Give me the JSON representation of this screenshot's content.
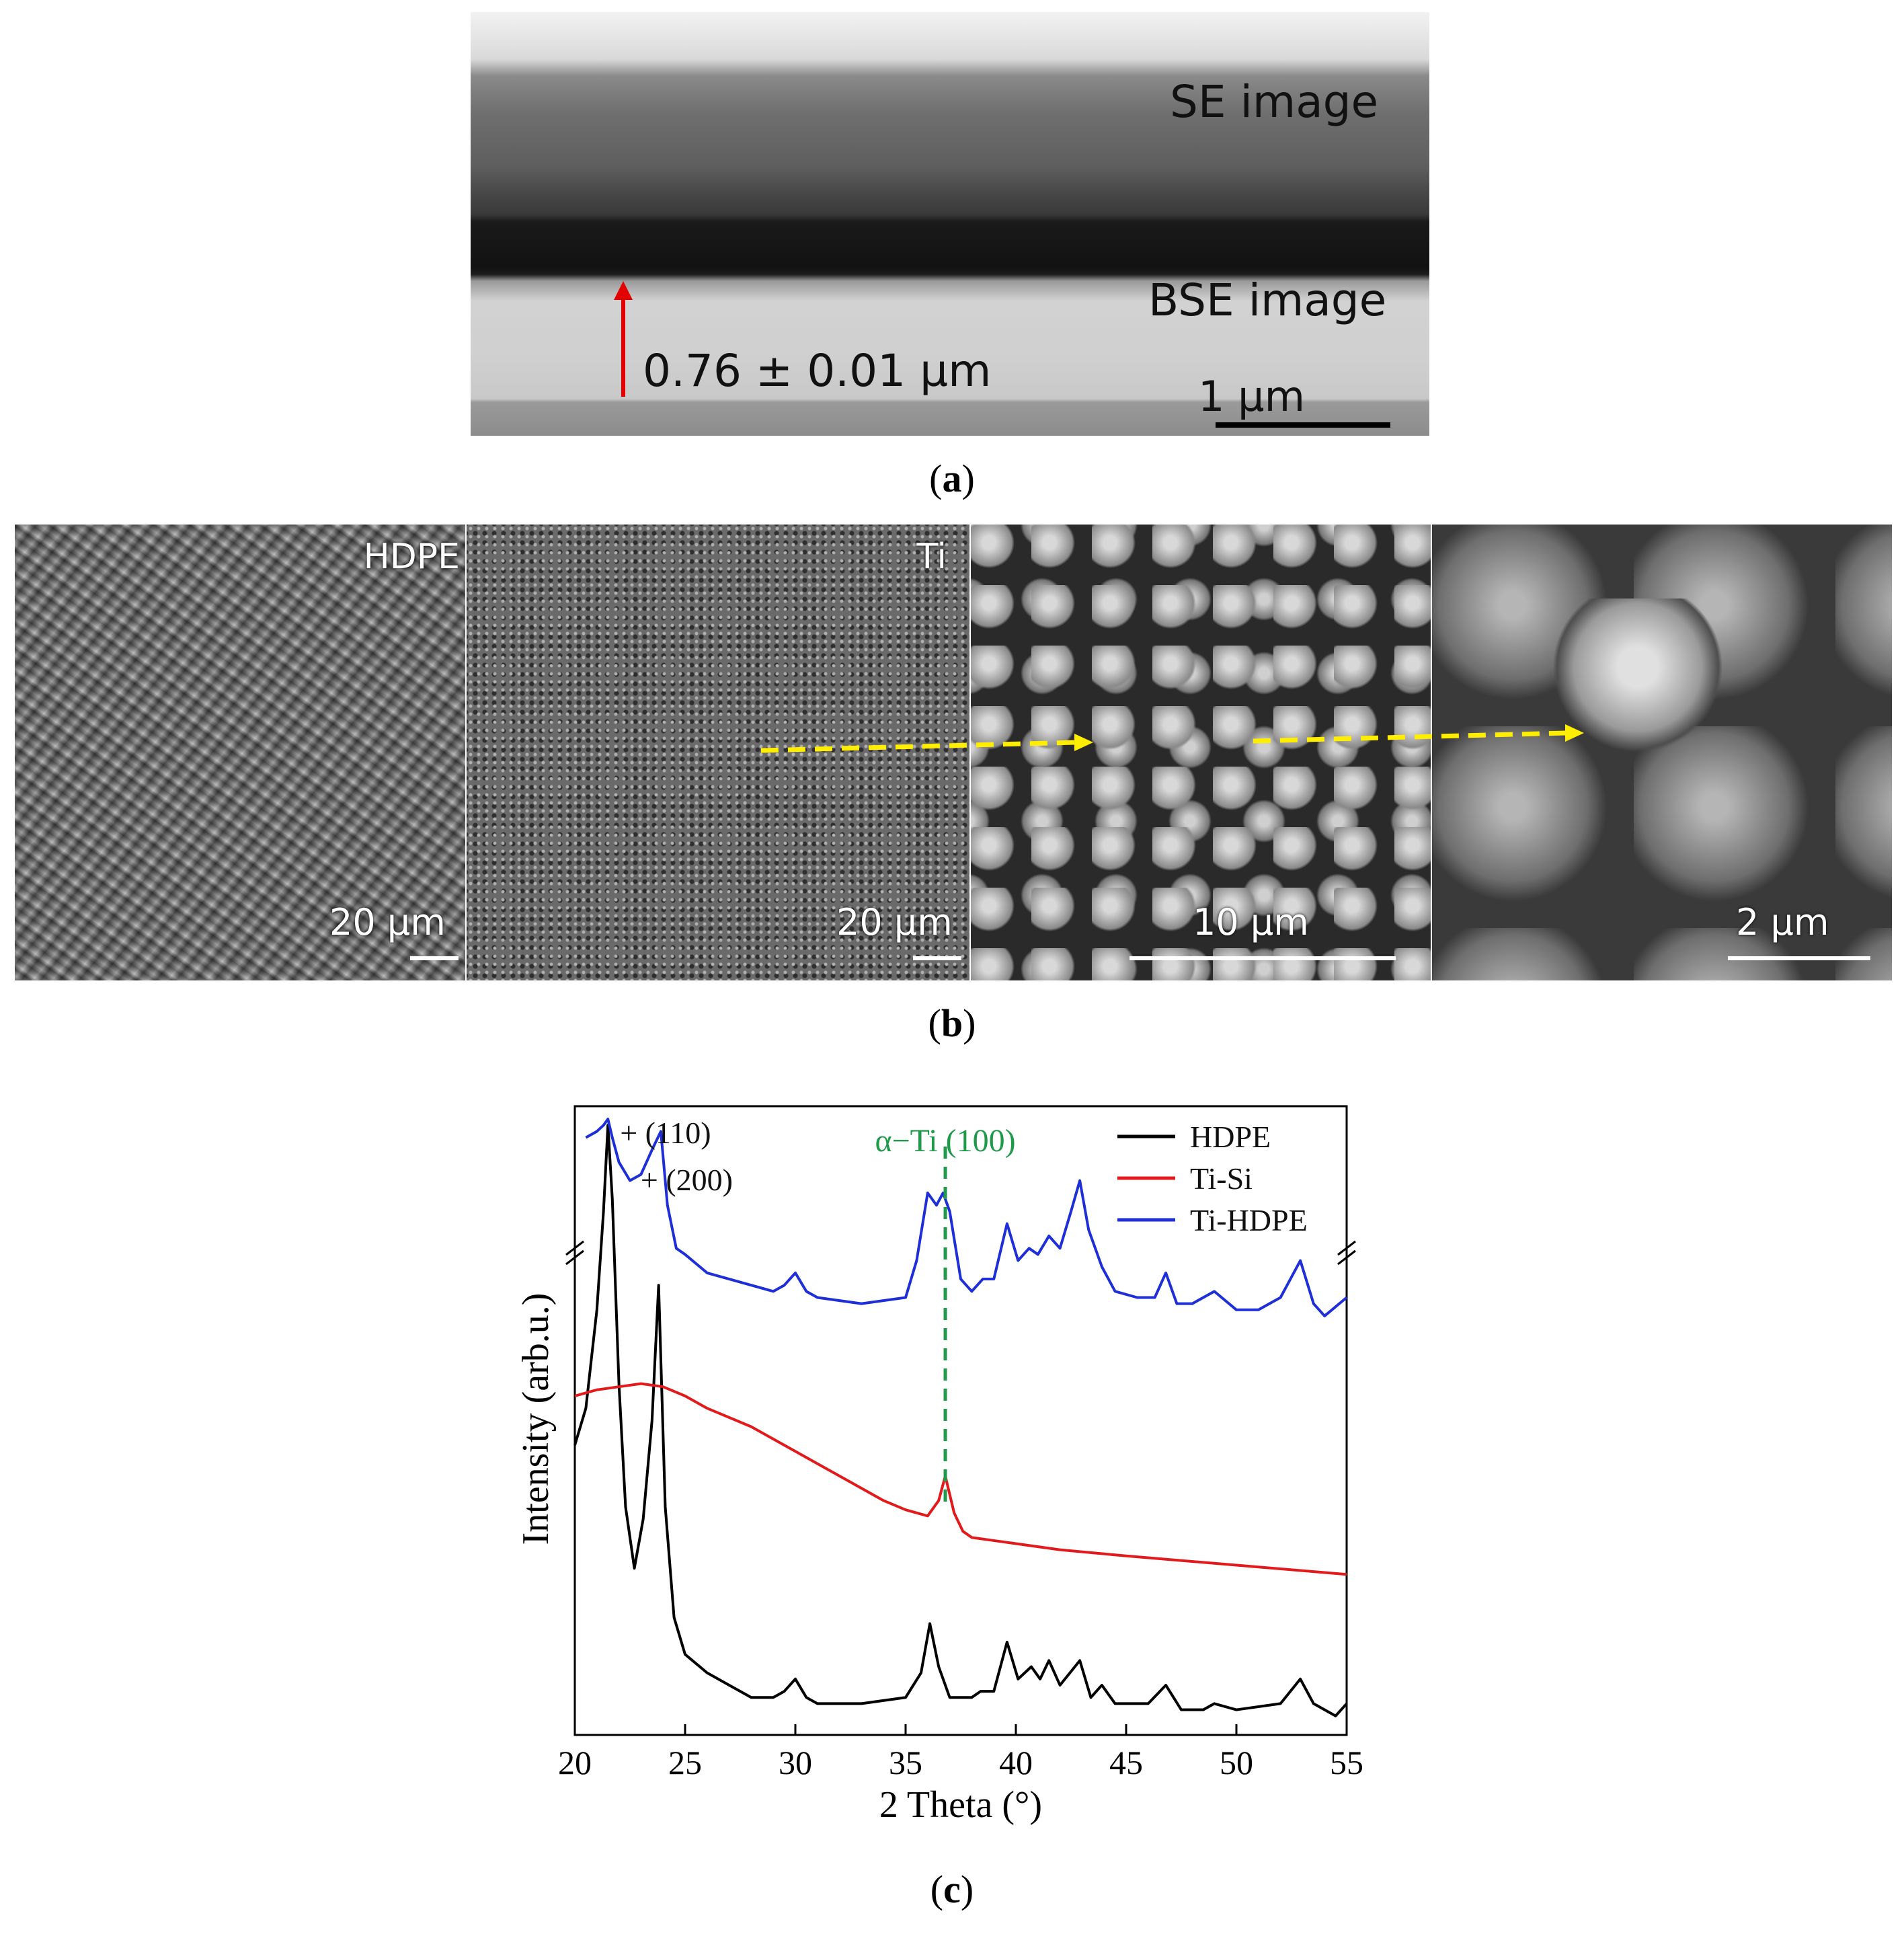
{
  "panel_a": {
    "se_label": "SE image",
    "bse_label": "BSE image",
    "thickness": "0.76 ± 0.01 µm",
    "scale": "1 µm",
    "caption_letter": "a"
  },
  "panel_b": {
    "images": [
      {
        "corner_label": "HDPE",
        "scale": "20 µm"
      },
      {
        "corner_label": "Ti",
        "scale": "20 µm"
      },
      {
        "corner_label": "",
        "scale": "10 µm"
      },
      {
        "corner_label": "",
        "scale": "2 µm"
      }
    ],
    "caption_letter": "b"
  },
  "panel_c": {
    "caption_letter": "c",
    "chart_data": {
      "type": "line",
      "xlabel": "2 Theta (°)",
      "ylabel": "Intensity (arb.u.)",
      "xlim": [
        20,
        55
      ],
      "xticks": [
        20,
        25,
        30,
        35,
        40,
        45,
        50,
        55
      ],
      "ylim": [
        0,
        100
      ],
      "legend_position": "top-right",
      "annotations": [
        {
          "text": "+ (110)",
          "x": 21.5
        },
        {
          "text": "+ (200)",
          "x": 23.9
        },
        {
          "text": "α−Ti (100)",
          "x": 36.8,
          "color": "#1e9a4a"
        }
      ],
      "series": [
        {
          "name": "HDPE",
          "color": "#000000",
          "x": [
            20,
            20.5,
            21,
            21.3,
            21.5,
            21.7,
            22,
            22.3,
            22.7,
            23.1,
            23.5,
            23.8,
            24.1,
            24.5,
            25,
            26,
            27,
            28,
            29,
            29.5,
            30,
            30.5,
            31,
            33,
            35,
            35.7,
            36.1,
            36.5,
            37,
            38,
            38.4,
            39,
            39.6,
            40.1,
            40.7,
            41.1,
            41.5,
            42,
            42.9,
            43.4,
            43.9,
            44.5,
            46,
            46.8,
            47.5,
            48.5,
            49,
            50,
            52,
            52.9,
            53.5,
            54.5,
            55
          ],
          "y": [
            46,
            52,
            68,
            84,
            98,
            86,
            56,
            36,
            26,
            34,
            50,
            72,
            36,
            18,
            12,
            9,
            7,
            5,
            5,
            6,
            8,
            5,
            4,
            4,
            5,
            9,
            17,
            10,
            5,
            5,
            6,
            6,
            14,
            8,
            10,
            8,
            11,
            7,
            11,
            5,
            7,
            4,
            4,
            7,
            3,
            3,
            4,
            3,
            4,
            8,
            4,
            2,
            4
          ]
        },
        {
          "name": "Ti-Si",
          "color": "#e31a1c",
          "x": [
            20,
            21,
            22,
            23,
            24,
            25,
            26,
            28,
            30,
            32,
            34,
            35,
            36,
            36.5,
            36.8,
            37.2,
            37.6,
            38,
            39,
            40,
            42,
            45,
            50,
            55
          ],
          "y": [
            54,
            55,
            55.5,
            56,
            55.5,
            54,
            52,
            49,
            45,
            41,
            37,
            35.5,
            34.5,
            37,
            41,
            35,
            32,
            31,
            30.5,
            30,
            29,
            28,
            26.5,
            25
          ]
        },
        {
          "name": "Ti-HDPE",
          "color": "#1f2fd8",
          "x": [
            20.5,
            21,
            21.3,
            21.5,
            21.7,
            22,
            22.5,
            23,
            23.5,
            23.9,
            24.2,
            24.6,
            25,
            26,
            27,
            28,
            29,
            29.5,
            30,
            30.5,
            31,
            33,
            35,
            35.5,
            36,
            36.4,
            36.7,
            37,
            37.5,
            38,
            38.5,
            39,
            39.6,
            40.1,
            40.6,
            41,
            41.5,
            42,
            42.5,
            42.9,
            43.3,
            43.9,
            44.5,
            45.5,
            46.3,
            46.8,
            47.3,
            48,
            49,
            50,
            51,
            52,
            52.9,
            53.5,
            54,
            55
          ],
          "y": [
            96,
            97,
            98,
            99,
            96,
            92,
            89,
            90,
            94,
            97,
            85,
            78,
            77,
            74,
            73,
            72,
            71,
            72,
            74,
            71,
            70,
            69,
            70,
            76,
            87,
            85,
            87,
            84,
            73,
            71,
            73,
            73,
            82,
            76,
            78,
            77,
            80,
            78,
            84,
            89,
            81,
            75,
            71,
            70,
            70,
            74,
            69,
            69,
            71,
            68,
            68,
            70,
            76,
            69,
            67,
            70
          ]
        }
      ]
    }
  }
}
